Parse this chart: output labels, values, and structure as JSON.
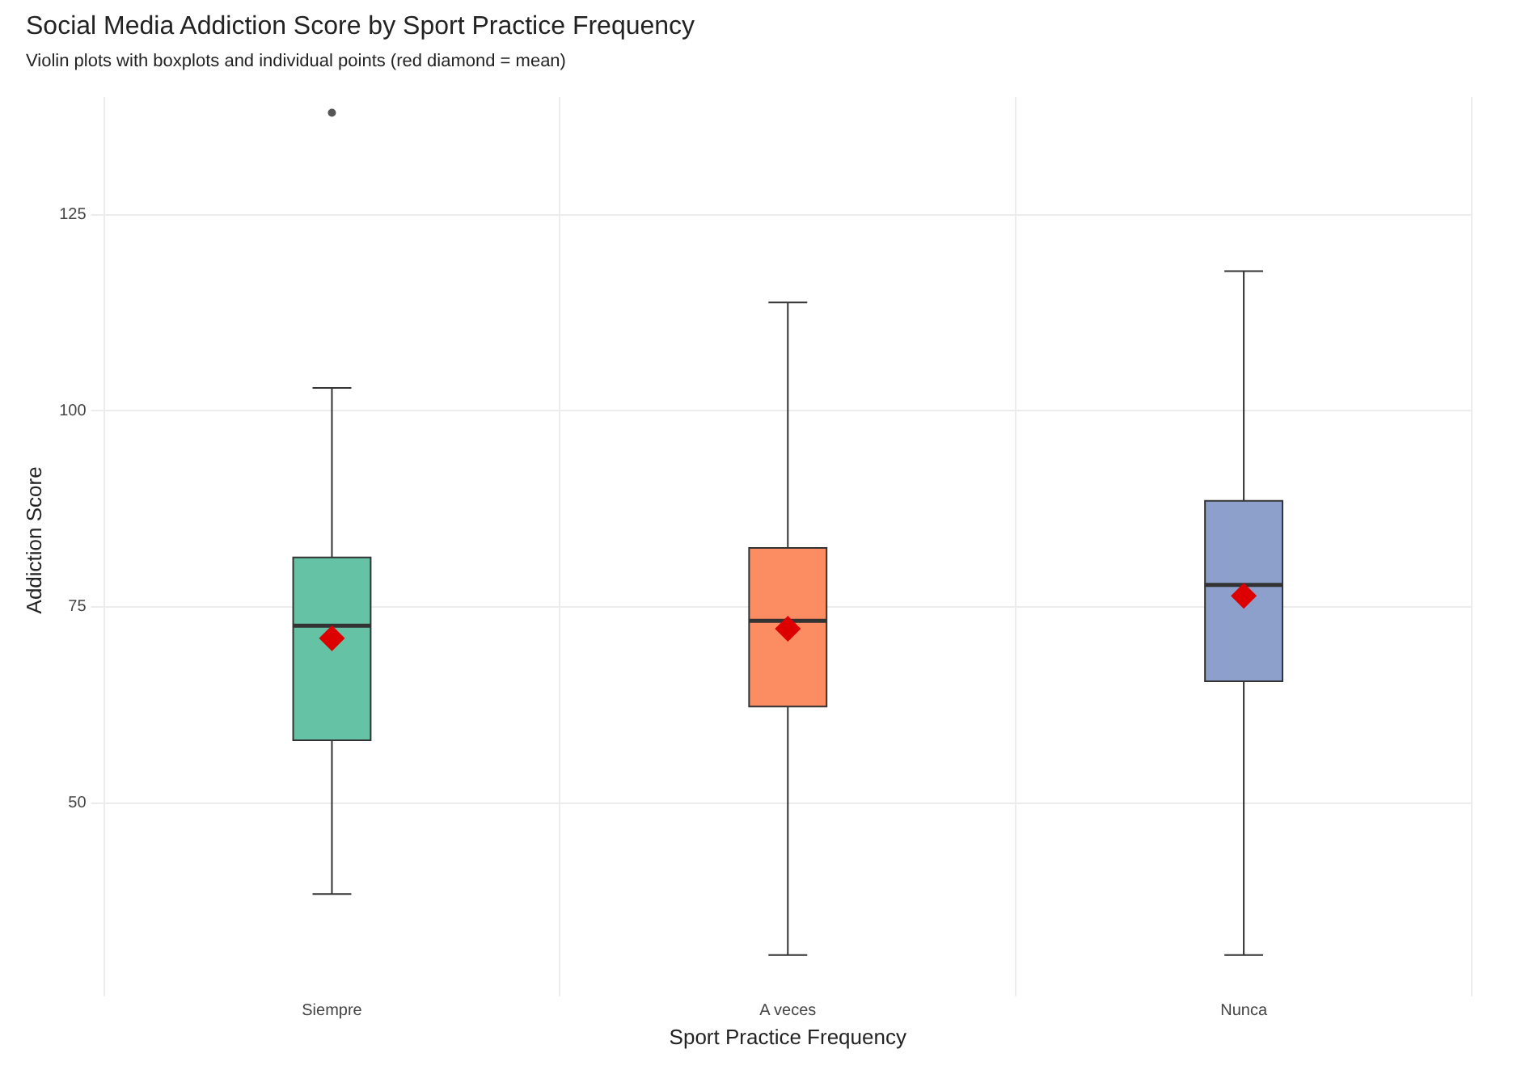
{
  "chart_data": {
    "type": "box",
    "title": "Social Media Addiction Score by Sport Practice Frequency",
    "subtitle": "Violin plots with boxplots and individual points (red diamond = mean)",
    "xlabel": "Sport Practice Frequency",
    "ylabel": "Addiction Score",
    "categories": [
      "Siempre",
      "A veces",
      "Nunca"
    ],
    "colors": [
      "#66c2a5",
      "#fc8d62",
      "#8da0cb"
    ],
    "boxes": [
      {
        "low": 38.4,
        "q1": 58,
        "median": 72.6,
        "q3": 81.3,
        "high": 102.9,
        "mean": 71,
        "outliers": [
          138
        ]
      },
      {
        "low": 30.6,
        "q1": 62.3,
        "median": 73.2,
        "q3": 82.5,
        "high": 113.8,
        "mean": 72.2
      },
      {
        "low": 30.6,
        "q1": 65.5,
        "median": 77.8,
        "q3": 88.5,
        "high": 117.8,
        "mean": 76.4
      }
    ],
    "ylim": [
      27,
      140
    ],
    "yticks": [
      50,
      75,
      100,
      125
    ],
    "grid": true,
    "legend": false
  }
}
